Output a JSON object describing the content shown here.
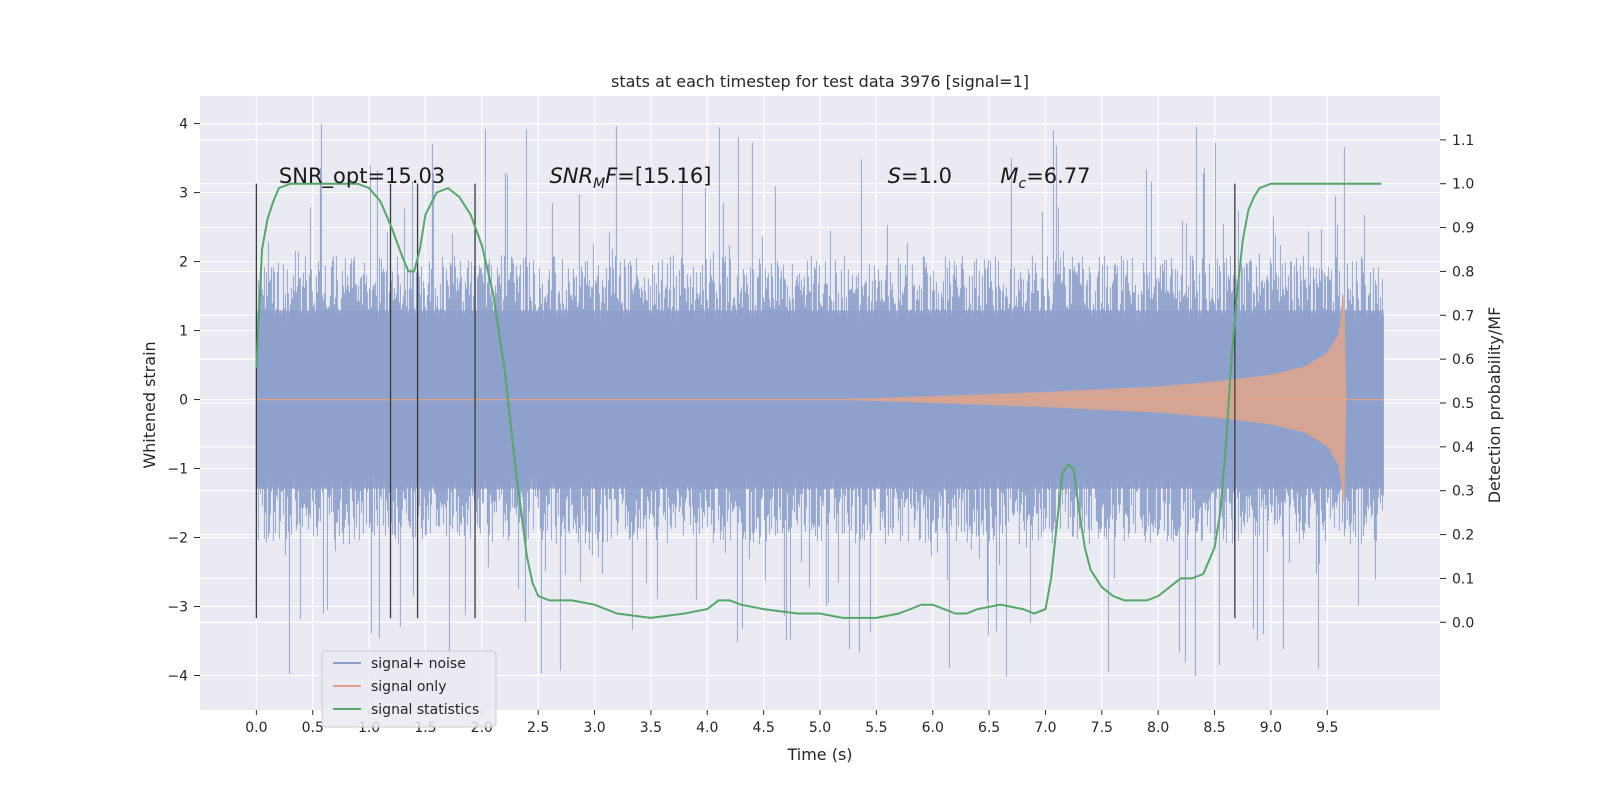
{
  "chart_data": {
    "type": "line",
    "title": "stats at each timestep for test data 3976 [signal=1]",
    "xlabel": "Time (s)",
    "ylabel_left": "Whitened strain",
    "ylabel_right": "Detection probability/MF",
    "xlim": [
      -0.5,
      10.5
    ],
    "ylim_left": [
      -4.5,
      4.4
    ],
    "ylim_right": [
      -0.2,
      1.2
    ],
    "x_ticks": [
      "0.0",
      "0.5",
      "1.0",
      "1.5",
      "2.0",
      "2.5",
      "3.0",
      "3.5",
      "4.0",
      "4.5",
      "5.0",
      "5.5",
      "6.0",
      "6.5",
      "7.0",
      "7.5",
      "8.0",
      "8.5",
      "9.0",
      "9.5"
    ],
    "y_ticks_left": [
      "4",
      "3",
      "2",
      "1",
      "0",
      "−1",
      "−2",
      "−3",
      "−4"
    ],
    "y_ticks_right": [
      "1.1",
      "1.0",
      "0.9",
      "0.8",
      "0.7",
      "0.6",
      "0.5",
      "0.4",
      "0.3",
      "0.2",
      "0.1",
      "0.0"
    ],
    "grid": true,
    "legend_position": "lower-left",
    "series": [
      {
        "name": "signal+ noise",
        "axis": "left",
        "color": "#8da0cb",
        "description_values": {
          "x_range": [
            0.0,
            10.0
          ],
          "typical_band": [
            -1.9,
            1.9
          ],
          "max": 4.02,
          "min": -4.05
        }
      },
      {
        "name": "signal only",
        "axis": "left",
        "color": "#e1a48b",
        "chirp_envelope": {
          "x": [
            0.0,
            5.0,
            5.5,
            6.0,
            6.5,
            7.0,
            7.5,
            8.0,
            8.5,
            9.0,
            9.3,
            9.5,
            9.6,
            9.65,
            9.67
          ],
          "amp": [
            0.0,
            0.0,
            0.02,
            0.05,
            0.08,
            0.11,
            0.15,
            0.19,
            0.26,
            0.36,
            0.48,
            0.68,
            0.95,
            1.6,
            0.0
          ]
        }
      },
      {
        "name": "signal statistics",
        "axis": "right",
        "color": "#55a868",
        "x": [
          0.0,
          0.05,
          0.1,
          0.15,
          0.2,
          0.3,
          0.5,
          0.7,
          0.9,
          1.0,
          1.1,
          1.2,
          1.3,
          1.35,
          1.4,
          1.45,
          1.5,
          1.6,
          1.7,
          1.8,
          1.9,
          2.0,
          2.1,
          2.2,
          2.3,
          2.35,
          2.4,
          2.45,
          2.5,
          2.6,
          2.8,
          3.0,
          3.2,
          3.5,
          3.8,
          4.0,
          4.1,
          4.2,
          4.3,
          4.5,
          4.8,
          5.0,
          5.2,
          5.5,
          5.7,
          5.9,
          6.0,
          6.1,
          6.2,
          6.3,
          6.4,
          6.6,
          6.8,
          6.9,
          7.0,
          7.05,
          7.1,
          7.15,
          7.2,
          7.25,
          7.3,
          7.35,
          7.4,
          7.5,
          7.6,
          7.7,
          7.8,
          7.9,
          8.0,
          8.1,
          8.2,
          8.3,
          8.4,
          8.5,
          8.55,
          8.6,
          8.65,
          8.7,
          8.75,
          8.8,
          8.85,
          8.9,
          9.0,
          9.2,
          9.5,
          9.98
        ],
        "y": [
          0.58,
          0.85,
          0.92,
          0.96,
          0.99,
          1.0,
          1.0,
          1.0,
          1.0,
          0.99,
          0.96,
          0.9,
          0.83,
          0.8,
          0.8,
          0.85,
          0.93,
          0.98,
          0.99,
          0.97,
          0.93,
          0.86,
          0.75,
          0.58,
          0.35,
          0.25,
          0.15,
          0.09,
          0.06,
          0.05,
          0.05,
          0.04,
          0.02,
          0.01,
          0.02,
          0.03,
          0.05,
          0.05,
          0.04,
          0.03,
          0.02,
          0.02,
          0.01,
          0.01,
          0.02,
          0.04,
          0.04,
          0.03,
          0.02,
          0.02,
          0.03,
          0.04,
          0.03,
          0.02,
          0.03,
          0.1,
          0.22,
          0.34,
          0.36,
          0.35,
          0.25,
          0.17,
          0.12,
          0.08,
          0.06,
          0.05,
          0.05,
          0.05,
          0.06,
          0.08,
          0.1,
          0.1,
          0.11,
          0.17,
          0.25,
          0.4,
          0.6,
          0.75,
          0.87,
          0.94,
          0.97,
          0.99,
          1.0,
          1.0,
          1.0,
          1.0
        ]
      }
    ],
    "vertical_markers_x": [
      0.0,
      1.19,
      1.43,
      1.94,
      8.68
    ],
    "annotations": [
      {
        "text": "SNR_opt=15.03",
        "x": 0.2
      },
      {
        "base": "SNR",
        "sub": "M",
        "tail": "F=[15.16]",
        "x": 2.6
      },
      {
        "base": "S",
        "tail": "=1.0",
        "x": 5.6
      },
      {
        "base": "M",
        "sub": "c",
        "tail": "=6.77",
        "x": 6.6
      }
    ]
  }
}
